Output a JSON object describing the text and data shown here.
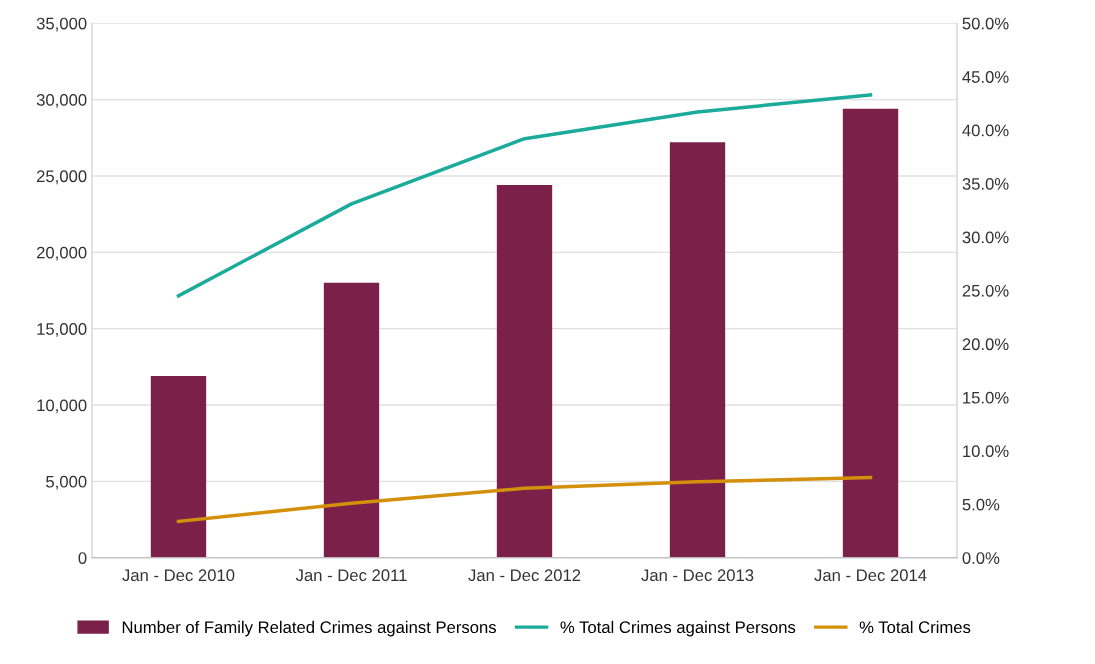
{
  "chart_data": {
    "type": "bar",
    "categories": [
      "Jan - Dec 2010",
      "Jan - Dec 2011",
      "Jan - Dec 2012",
      "Jan - Dec 2013",
      "Jan - Dec 2014"
    ],
    "series": [
      {
        "name": "Number of Family Related Crimes against Persons",
        "color": "#7b2049",
        "values": [
          11900,
          18000,
          24400,
          27200,
          29400
        ]
      },
      {
        "name": "% Total Crimes against Persons",
        "color": "#1aab9b",
        "type": "line",
        "axis": "y2",
        "values": [
          24.5,
          33.1,
          39.2,
          41.7,
          43.3
        ]
      },
      {
        "name": "% Total Crimes",
        "color": "#d4900a",
        "type": "line",
        "axis": "y2",
        "values": [
          3.4,
          5.1,
          6.5,
          7.1,
          7.5
        ]
      }
    ],
    "ylim": [
      0,
      35000
    ],
    "yticks": [
      0,
      {
        "value": 5000,
        "label": "5,000"
      },
      {
        "value": 10000,
        "label": "10,000"
      },
      {
        "value": 15000,
        "label": "15,000"
      },
      {
        "value": 20000,
        "label": "20,000"
      },
      {
        "value": 25000,
        "label": "25,000"
      },
      {
        "value": 30000,
        "label": "30,000"
      },
      {
        "value": 35000,
        "label": "35,000"
      }
    ],
    "y2lim": [
      0,
      50
    ],
    "y2ticks": [
      {
        "value": 0,
        "label": "0.0%"
      },
      {
        "value": 5,
        "label": "5.0%"
      },
      {
        "value": 10,
        "label": "10.0%"
      },
      {
        "value": 15,
        "label": "15.0%"
      },
      {
        "value": 20,
        "label": "20.0%"
      },
      {
        "value": 25,
        "label": "25.0%"
      },
      {
        "value": 30,
        "label": "30.0%"
      },
      {
        "value": 35,
        "label": "35.0%"
      },
      {
        "value": 40,
        "label": "40.0%"
      },
      {
        "value": 45,
        "label": "45.0%"
      },
      {
        "value": 50,
        "label": "50.0%"
      }
    ],
    "grid": "y",
    "legend": "bottom",
    "marker": "none",
    "line_style": "solid"
  }
}
